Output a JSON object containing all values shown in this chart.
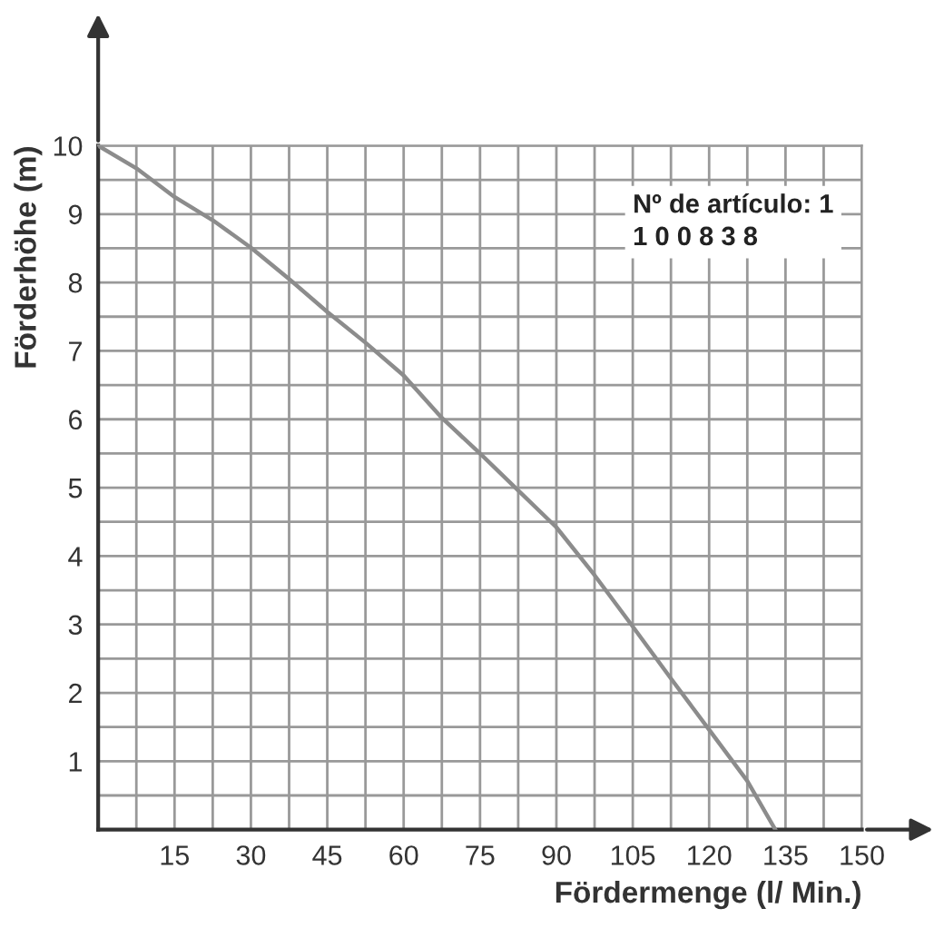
{
  "chart_data": {
    "type": "line",
    "xlabel": "Fördermenge (l/ Min.)",
    "ylabel": "Förderhöhe (m)",
    "annotations": [
      "Nº de artículo: 1\n1 0 0 8 3 8"
    ],
    "x": [
      0,
      7.5,
      15,
      22.5,
      30,
      37.5,
      45,
      52.5,
      60,
      67.5,
      75,
      82.5,
      90,
      97.5,
      105,
      112.5,
      120,
      127.5,
      133
    ],
    "series": [
      {
        "color": "#8c8c8c",
        "values": [
          10,
          9.67,
          9.25,
          8.91,
          8.51,
          8.05,
          7.57,
          7.12,
          6.64,
          6.02,
          5.5,
          4.96,
          4.42,
          3.72,
          2.97,
          2.21,
          1.46,
          0.71,
          0
        ]
      }
    ],
    "xlim": [
      0,
      150
    ],
    "ylim": [
      0,
      10
    ],
    "xticks": [
      {
        "value": 0,
        "label": null
      },
      {
        "value": 7.5,
        "label": null
      },
      15,
      {
        "value": 22.5,
        "label": null
      },
      30,
      {
        "value": 37.5,
        "label": null
      },
      45,
      {
        "value": 52.5,
        "label": null
      },
      60,
      {
        "value": 67.5,
        "label": null
      },
      75,
      {
        "value": 82.5,
        "label": null
      },
      90,
      {
        "value": 97.5,
        "label": null
      },
      105,
      {
        "value": 112.5,
        "label": null
      },
      120,
      {
        "value": 127.5,
        "label": null
      },
      135,
      {
        "value": 142.5,
        "label": null
      },
      150
    ],
    "yticks": [
      {
        "value": 0,
        "label": null
      },
      {
        "value": 0.5,
        "label": null
      },
      1,
      {
        "value": 1.5,
        "label": null
      },
      2,
      {
        "value": 2.5,
        "label": null
      },
      3,
      {
        "value": 3.5,
        "label": null
      },
      4,
      {
        "value": 4.5,
        "label": null
      },
      5,
      {
        "value": 5.5,
        "label": null
      },
      6,
      {
        "value": 6.5,
        "label": null
      },
      7,
      {
        "value": 7.5,
        "label": null
      },
      8,
      {
        "value": 8.5,
        "label": null
      },
      9,
      {
        "value": 9.5,
        "label": null
      },
      10
    ],
    "grid": true,
    "legend": false,
    "marker": "none",
    "line_style": "solid"
  }
}
